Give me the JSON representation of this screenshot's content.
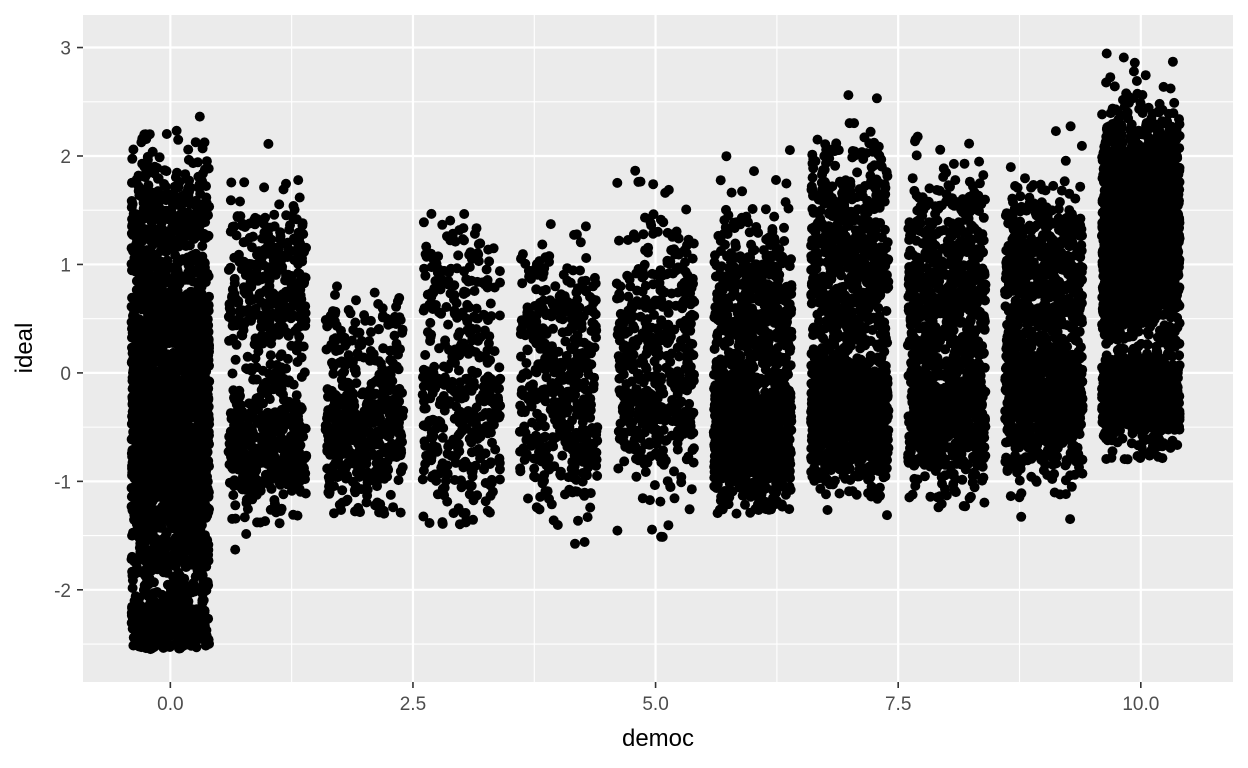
{
  "chart_data": {
    "type": "scatter",
    "title": "",
    "xlabel": "democ",
    "ylabel": "ideal",
    "xlim": [
      -0.9,
      10.95
    ],
    "ylim": [
      -2.85,
      3.3
    ],
    "x_ticks": [
      0.0,
      2.5,
      5.0,
      7.5,
      10.0
    ],
    "x_tick_labels": [
      "0.0",
      "2.5",
      "5.0",
      "7.5",
      "10.0"
    ],
    "y_ticks": [
      -2,
      -1,
      0,
      1,
      2,
      3
    ],
    "y_tick_labels": [
      "-2",
      "-1",
      "0",
      "1",
      "2",
      "3"
    ],
    "grid": true,
    "jitter_width": 0.4,
    "point_color": "#000000",
    "panel_color": "#ebebeb",
    "grid_color": "#ffffff",
    "groups": [
      {
        "x": 0,
        "count": 3000,
        "clusters": [
          {
            "mean": -0.4,
            "sd": 0.85,
            "weight": 0.82
          },
          {
            "mean": -2.3,
            "sd": 0.15,
            "weight": 0.1
          },
          {
            "mean": 1.5,
            "sd": 0.3,
            "weight": 0.08
          }
        ],
        "range": [
          -2.55,
          2.4
        ]
      },
      {
        "x": 1,
        "count": 750,
        "clusters": [
          {
            "mean": -0.7,
            "sd": 0.3,
            "weight": 0.55
          },
          {
            "mean": 0.8,
            "sd": 0.45,
            "weight": 0.45
          }
        ],
        "range": [
          -1.7,
          2.2
        ]
      },
      {
        "x": 2,
        "count": 500,
        "clusters": [
          {
            "mean": -0.5,
            "sd": 0.35,
            "weight": 0.85
          },
          {
            "mean": 0.3,
            "sd": 0.25,
            "weight": 0.15
          }
        ],
        "range": [
          -1.3,
          0.98
        ]
      },
      {
        "x": 3,
        "count": 420,
        "clusters": [
          {
            "mean": -0.4,
            "sd": 0.5,
            "weight": 0.7
          },
          {
            "mean": 0.8,
            "sd": 0.35,
            "weight": 0.3
          }
        ],
        "range": [
          -1.4,
          1.6
        ]
      },
      {
        "x": 4,
        "count": 480,
        "clusters": [
          {
            "mean": -0.4,
            "sd": 0.45,
            "weight": 0.65
          },
          {
            "mean": 0.6,
            "sd": 0.35,
            "weight": 0.35
          }
        ],
        "range": [
          -1.75,
          1.93
        ]
      },
      {
        "x": 5,
        "count": 500,
        "clusters": [
          {
            "mean": -0.3,
            "sd": 0.4,
            "weight": 0.55
          },
          {
            "mean": 0.6,
            "sd": 0.45,
            "weight": 0.45
          }
        ],
        "range": [
          -1.65,
          1.87
        ]
      },
      {
        "x": 6,
        "count": 1500,
        "clusters": [
          {
            "mean": -0.6,
            "sd": 0.3,
            "weight": 0.65
          },
          {
            "mean": 0.6,
            "sd": 0.45,
            "weight": 0.35
          }
        ],
        "range": [
          -1.3,
          2.35
        ]
      },
      {
        "x": 7,
        "count": 1500,
        "clusters": [
          {
            "mean": -0.4,
            "sd": 0.3,
            "weight": 0.55
          },
          {
            "mean": 0.9,
            "sd": 0.6,
            "weight": 0.45
          }
        ],
        "range": [
          -1.55,
          2.7
        ]
      },
      {
        "x": 8,
        "count": 1200,
        "clusters": [
          {
            "mean": -0.4,
            "sd": 0.3,
            "weight": 0.55
          },
          {
            "mean": 0.8,
            "sd": 0.5,
            "weight": 0.45
          }
        ],
        "range": [
          -1.25,
          2.25
        ]
      },
      {
        "x": 9,
        "count": 1200,
        "clusters": [
          {
            "mean": -0.3,
            "sd": 0.35,
            "weight": 0.55
          },
          {
            "mean": 0.9,
            "sd": 0.45,
            "weight": 0.45
          }
        ],
        "range": [
          -1.55,
          2.45
        ]
      },
      {
        "x": 10,
        "count": 2800,
        "clusters": [
          {
            "mean": 1.35,
            "sd": 0.5,
            "weight": 0.78
          },
          {
            "mean": -0.25,
            "sd": 0.22,
            "weight": 0.22
          }
        ],
        "range": [
          -0.8,
          3.0
        ]
      }
    ]
  }
}
